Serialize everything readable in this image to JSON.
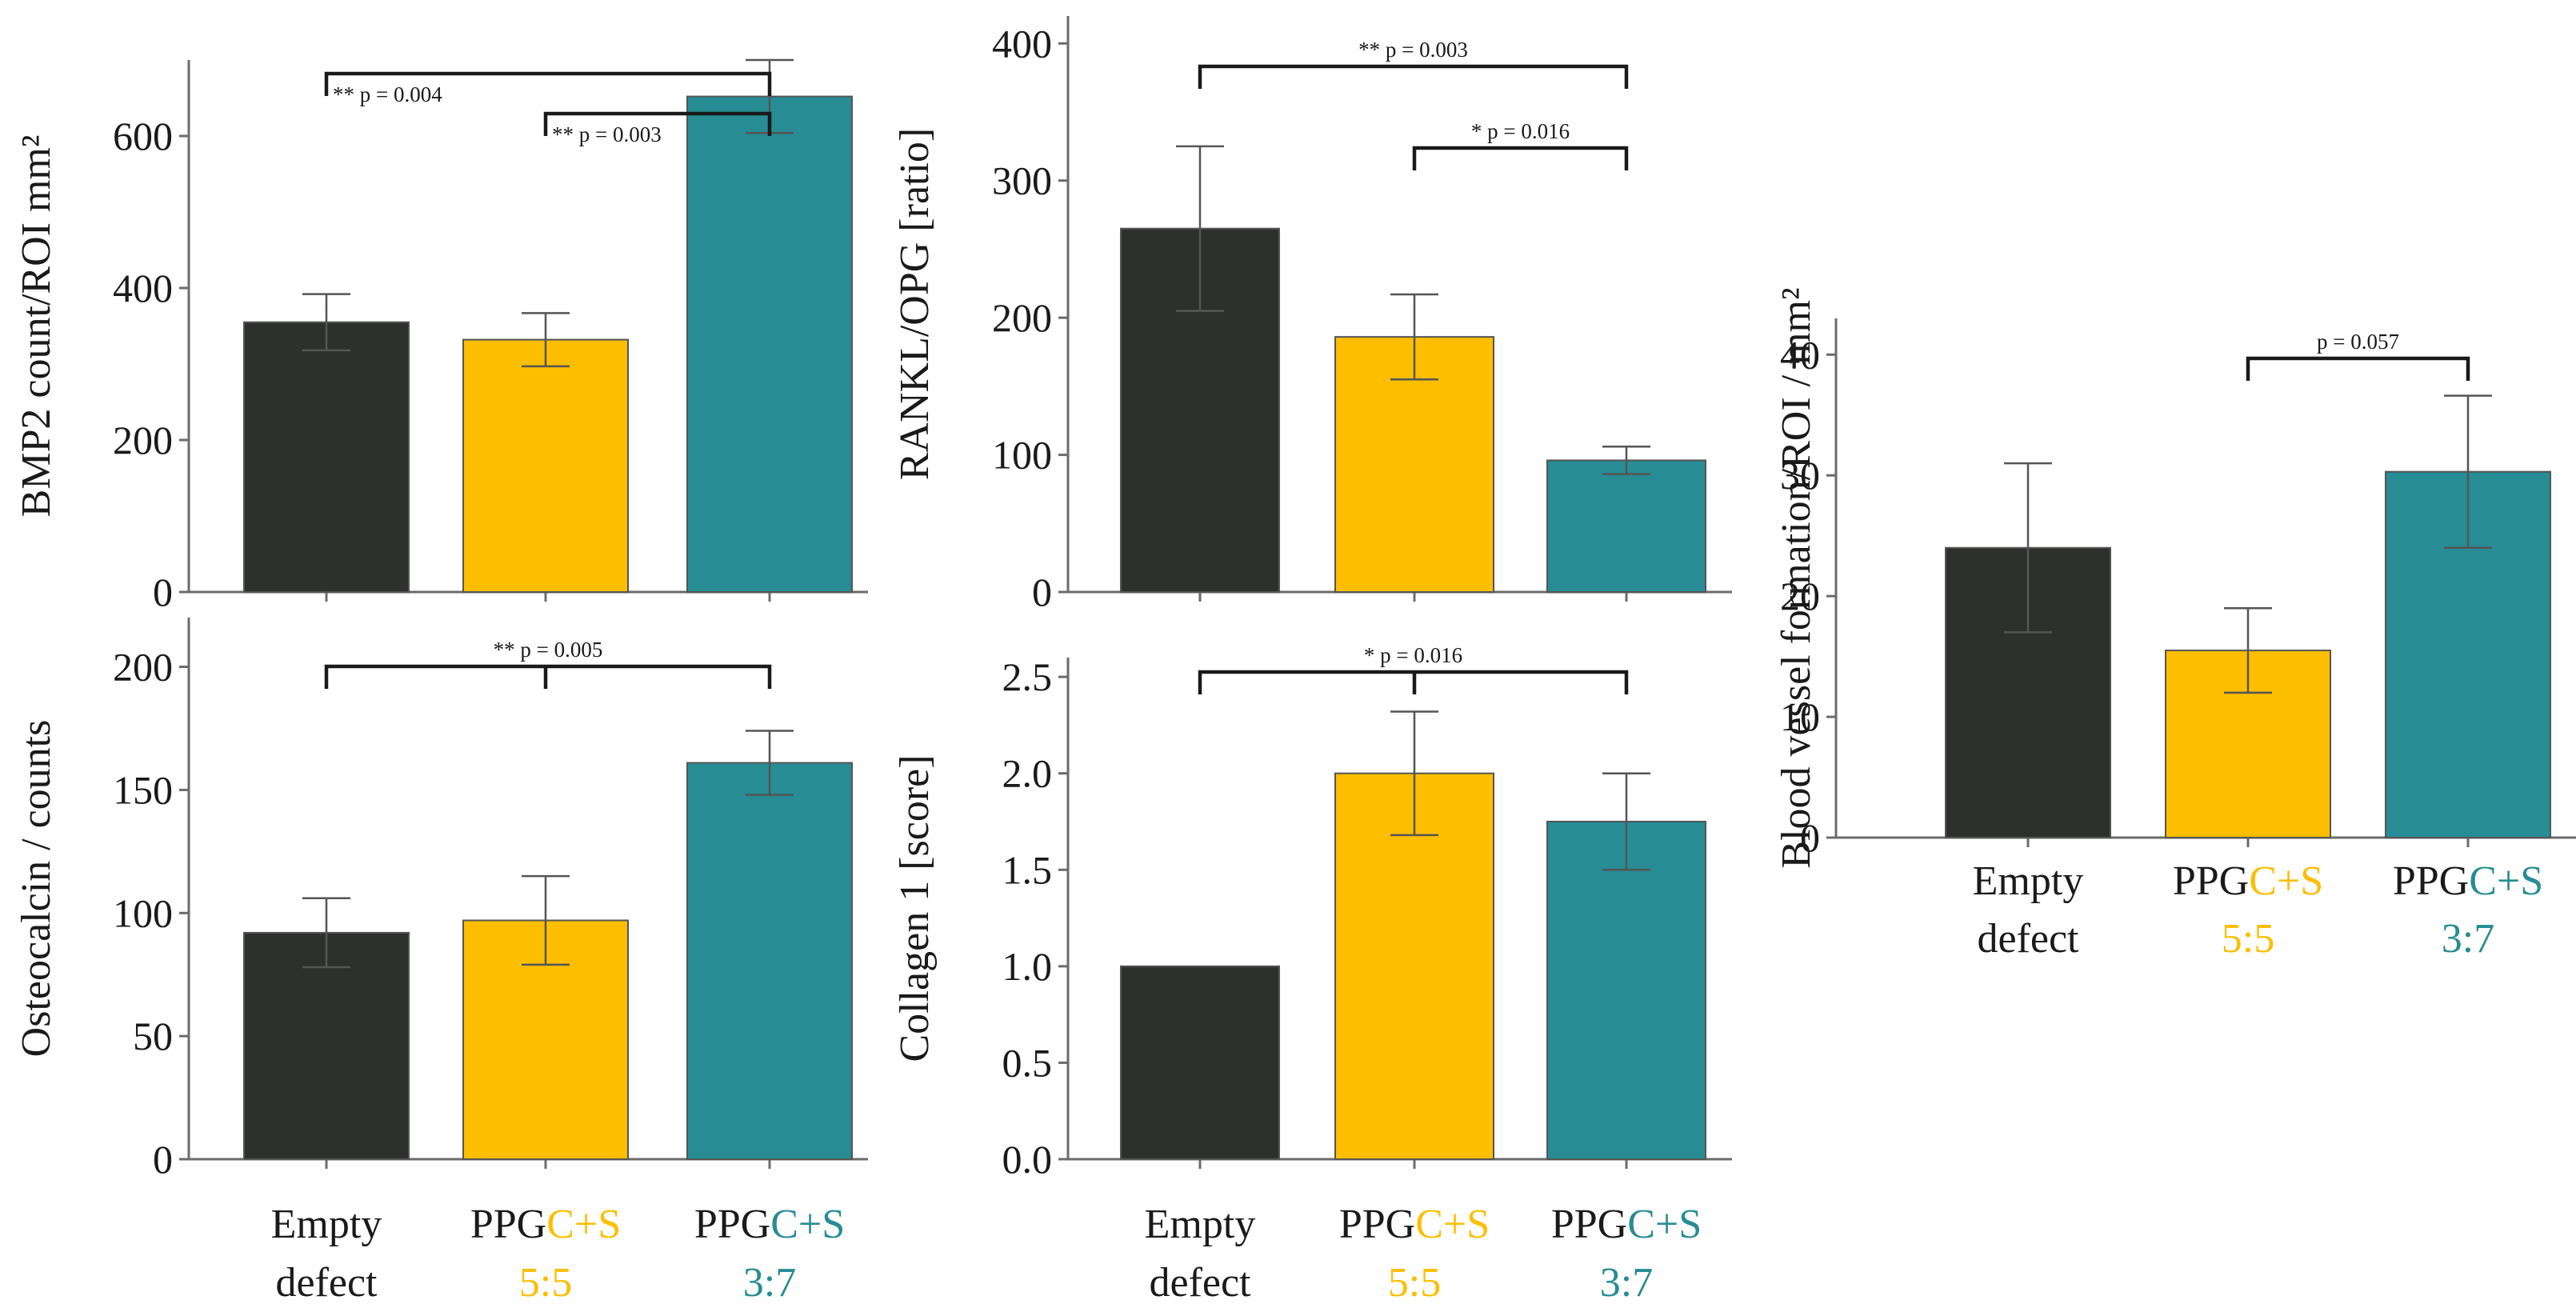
{
  "colors": {
    "empty_defect": "#2d302c",
    "ppgcs_55": "#fdbe00",
    "ppgcs_37": "#278c94",
    "text": "#1a1a1a"
  },
  "chart_data": [
    {
      "id": "bmp2",
      "type": "bar",
      "ylabel": "BMP2 count/ROI mm²",
      "ylim": [
        0,
        700
      ],
      "yticks": [
        0,
        200,
        400,
        600
      ],
      "categories": [
        "Empty defect",
        "PPGC+S 5:5",
        "PPGC+S 3:7"
      ],
      "values": [
        355,
        332,
        652
      ],
      "errors": [
        37,
        35,
        48
      ],
      "significance": [
        {
          "from": 0,
          "to": 2,
          "label": "** p = 0.004"
        },
        {
          "from": 1,
          "to": 2,
          "label": "** p = 0.003"
        }
      ]
    },
    {
      "id": "rankl_opg",
      "type": "bar",
      "ylabel": "RANKL/OPG [ratio]",
      "ylim": [
        0,
        420
      ],
      "yticks": [
        0,
        100,
        200,
        300,
        400
      ],
      "categories": [
        "Empty defect",
        "PPGC+S 5:5",
        "PPGC+S 3:7"
      ],
      "values": [
        265,
        186,
        96
      ],
      "errors": [
        60,
        31,
        10
      ],
      "significance": [
        {
          "from": 0,
          "to": 2,
          "label": "** p = 0.003"
        },
        {
          "from": 1,
          "to": 2,
          "label": "* p = 0.016"
        }
      ]
    },
    {
      "id": "osteocalcin",
      "type": "bar",
      "ylabel": "Osteocalcin / counts",
      "ylim": [
        0,
        220
      ],
      "yticks": [
        0,
        50,
        100,
        150,
        200
      ],
      "categories": [
        "Empty defect",
        "PPGC+S 5:5",
        "PPGC+S 3:7"
      ],
      "values": [
        92,
        97,
        161
      ],
      "errors": [
        14,
        18,
        13
      ],
      "significance": [
        {
          "from": 0,
          "to": 2,
          "label": "** p = 0.005",
          "midTick": 1
        }
      ]
    },
    {
      "id": "collagen1",
      "type": "bar",
      "ylabel": "Collagen 1 [score]",
      "ylim": [
        0,
        2.6
      ],
      "yticks": [
        0,
        0.5,
        1.0,
        1.5,
        2.0,
        2.5
      ],
      "tickFormat": 1,
      "categories": [
        "Empty defect",
        "PPGC+S 5:5",
        "PPGC+S 3:7"
      ],
      "values": [
        1.0,
        2.0,
        1.75
      ],
      "errors": [
        0,
        0.32,
        0.25
      ],
      "significance": [
        {
          "from": 0,
          "to": 2,
          "label": "* p = 0.016",
          "midTick": 1
        }
      ]
    },
    {
      "id": "blood_vessel",
      "type": "bar",
      "ylabel": "Blood vessel formation/ROI / mm²",
      "ylim": [
        0,
        43
      ],
      "yticks": [
        0,
        10,
        20,
        30,
        40
      ],
      "categories": [
        "Empty defect",
        "PPGC+S 5:5",
        "PPGC+S 3:7"
      ],
      "values": [
        24,
        15.5,
        30.3
      ],
      "errors": [
        7,
        3.5,
        6.3
      ],
      "significance": [
        {
          "from": 1,
          "to": 2,
          "label": "p = 0.057"
        }
      ]
    }
  ],
  "x_labels": [
    {
      "line1": "Empty",
      "line2": "defect"
    },
    {
      "prefix": "PPG",
      "highlight": "C+S",
      "ratio": "5:5"
    },
    {
      "prefix": "PPG",
      "highlight": "C+S",
      "ratio": "3:7"
    }
  ]
}
